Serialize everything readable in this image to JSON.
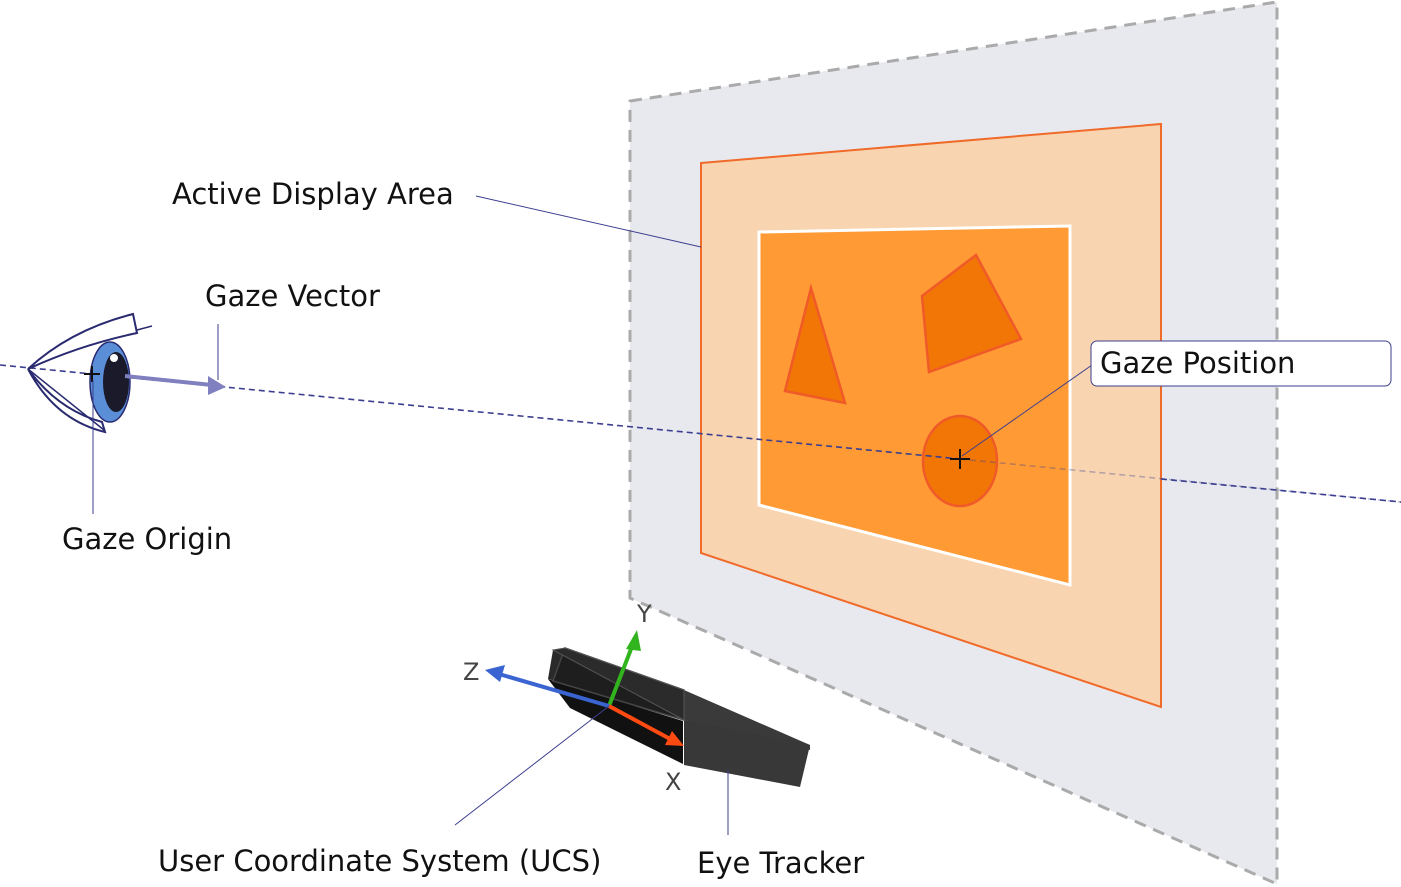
{
  "labels": {
    "active_display_area": "Active Display Area",
    "gaze_vector": "Gaze Vector",
    "gaze_origin": "Gaze Origin",
    "gaze_position": "Gaze Position",
    "ucs": "User Coordinate System (UCS)",
    "eye_tracker": "Eye Tracker"
  },
  "axes": {
    "x": "X",
    "y": "Y",
    "z": "Z"
  },
  "colors": {
    "plane": "#e8e9ee",
    "plane_border": "#aaaaaa",
    "display_outer": "#f8d5b0",
    "display_border": "#f06a2a",
    "display_inner": "#ff9a35",
    "shape_fill": "#f27605",
    "shape_stroke": "#f05a28",
    "gaze_line": "#3c3f8f",
    "gaze_arrow": "#8080c0",
    "axis_x": "#ff4a12",
    "axis_y": "#32b41e",
    "axis_z": "#3a64d2",
    "tracker": "#2a2a2a"
  },
  "icons": [
    "eye-icon",
    "crosshair-icon",
    "eye-tracker-device"
  ]
}
